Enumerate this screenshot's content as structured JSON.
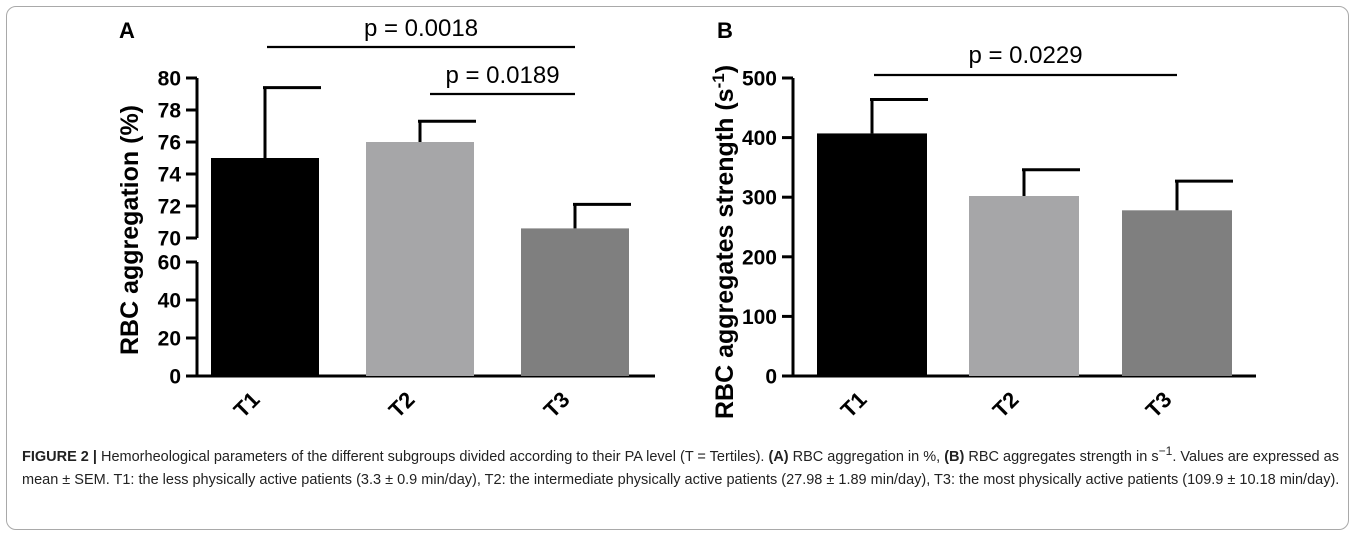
{
  "chart_data": [
    {
      "panel": "A",
      "type": "bar",
      "categories": [
        "T1",
        "T2",
        "T3"
      ],
      "values": [
        75.0,
        76.0,
        70.6
      ],
      "errors": [
        4.4,
        1.3,
        1.5
      ],
      "colors": [
        "#000000",
        "#a6a6a8",
        "#7f7f7f"
      ],
      "ylabel": "RBC aggregation (%)",
      "broken_axis": true,
      "lower_segment": {
        "ylim": [
          0,
          60
        ],
        "ticks": [
          "0",
          "20",
          "40",
          "60"
        ]
      },
      "upper_segment": {
        "ylim": [
          70,
          80
        ],
        "ticks": [
          "70",
          "72",
          "74",
          "76",
          "78",
          "80"
        ]
      },
      "significance": [
        {
          "from": "T1",
          "to": "T3",
          "label": "p = 0.0018"
        },
        {
          "from": "T2",
          "to": "T3",
          "label": "p = 0.0189"
        }
      ]
    },
    {
      "panel": "B",
      "type": "bar",
      "categories": [
        "T1",
        "T2",
        "T3"
      ],
      "values": [
        407,
        302,
        278
      ],
      "errors": [
        57,
        44,
        49
      ],
      "colors": [
        "#000000",
        "#a6a6a8",
        "#7f7f7f"
      ],
      "ylabel_main": "RBC aggregates strength (s",
      "ylabel_sup": "-1",
      "ylabel_close": ")",
      "ylim": [
        0,
        500
      ],
      "ticks": [
        "0",
        "100",
        "200",
        "300",
        "400",
        "500"
      ],
      "significance": [
        {
          "from": "T1",
          "to": "T3",
          "label": "p = 0.0229"
        }
      ]
    }
  ],
  "caption": {
    "figure_label": "FIGURE 2 |",
    "intro": " Hemorheological parameters of the different subgroups divided according to their PA level (T = Tertiles). ",
    "a_label": "(A)",
    "a_text": " RBC aggregation in %, ",
    "b_label": "(B)",
    "b_text": " RBC aggregates strength in s",
    "b_sup": "−1",
    "rest": ". Values are expressed as mean ± SEM. T1: the less physically active patients (3.3 ± 0.9 min/day), T2: the intermediate physically active patients (27.98 ± 1.89 min/day), T3: the most physically active patients (109.9 ± 10.18 min/day)."
  }
}
